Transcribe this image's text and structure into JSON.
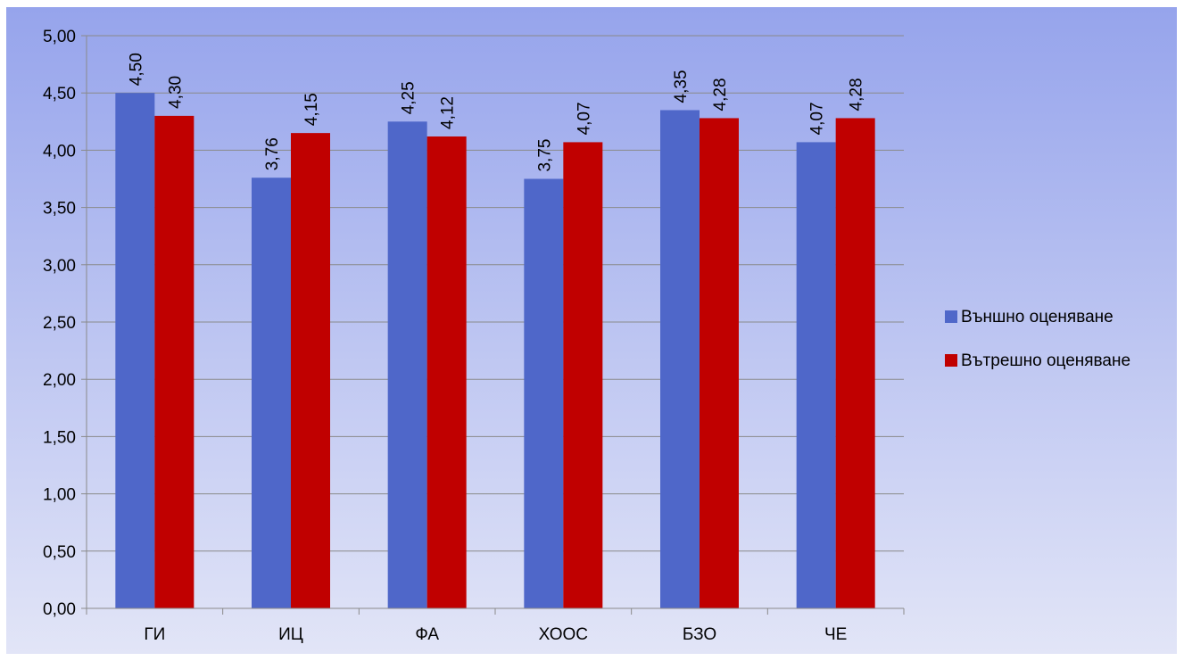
{
  "chart_data": {
    "type": "bar",
    "title": "",
    "xlabel": "",
    "ylabel": "",
    "categories": [
      "ГИ",
      "ИЦ",
      "ФА",
      "ХООС",
      "БЗО",
      "ЧЕ"
    ],
    "series": [
      {
        "name": "Външно оценяване",
        "color": "#4f67c9",
        "values": [
          4.5,
          3.76,
          4.25,
          3.75,
          4.35,
          4.07
        ],
        "labels": [
          "4,50",
          "3,76",
          "4,25",
          "3,75",
          "4,35",
          "4,07"
        ]
      },
      {
        "name": "Вътрешно оценяване",
        "color": "#c00000",
        "values": [
          4.3,
          4.15,
          4.12,
          4.07,
          4.28,
          4.28
        ],
        "labels": [
          "4,30",
          "4,15",
          "4,12",
          "4,07",
          "4,28",
          "4,28"
        ]
      }
    ],
    "ylim": [
      0,
      5
    ],
    "yticks": [
      "0,00",
      "0,50",
      "1,00",
      "1,50",
      "2,00",
      "2,50",
      "3,00",
      "3,50",
      "4,00",
      "4,50",
      "5,00"
    ],
    "grid": true,
    "legend_position": "right",
    "background_gradient": [
      "#96a4ec",
      "#e2e5f7"
    ]
  }
}
